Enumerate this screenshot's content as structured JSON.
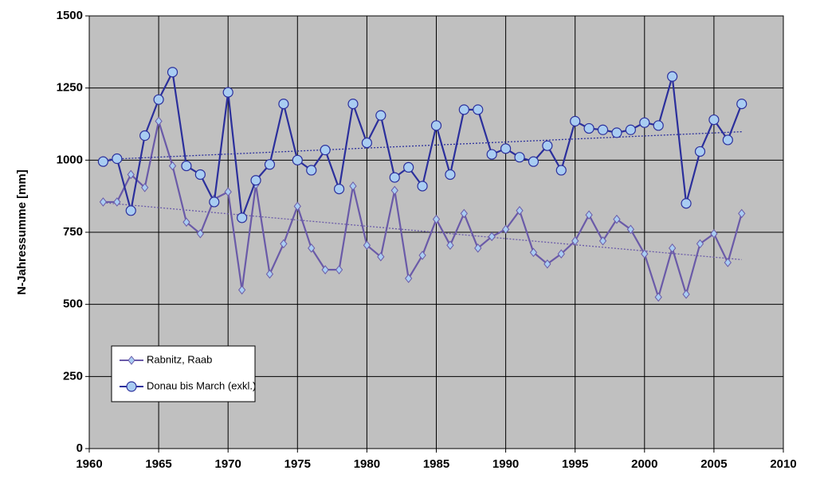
{
  "chart_data": {
    "type": "line",
    "y_label": "N-Jahressumme [mm]",
    "x": [
      1961,
      1962,
      1963,
      1964,
      1965,
      1966,
      1967,
      1968,
      1969,
      1970,
      1971,
      1972,
      1973,
      1974,
      1975,
      1976,
      1977,
      1978,
      1979,
      1980,
      1981,
      1982,
      1983,
      1984,
      1985,
      1986,
      1987,
      1988,
      1989,
      1990,
      1991,
      1992,
      1993,
      1994,
      1995,
      1996,
      1997,
      1998,
      1999,
      2000,
      2001,
      2002,
      2003,
      2004,
      2005,
      2006,
      2007
    ],
    "series": [
      {
        "name": "Rabnitz, Raab",
        "color": "#6a5aa8",
        "marker": "diamond",
        "values": [
          855,
          855,
          950,
          905,
          1135,
          980,
          785,
          745,
          865,
          890,
          550,
          915,
          605,
          710,
          840,
          695,
          620,
          620,
          910,
          705,
          665,
          895,
          590,
          670,
          795,
          705,
          815,
          695,
          735,
          760,
          825,
          680,
          640,
          675,
          720,
          810,
          720,
          795,
          760,
          675,
          525,
          695,
          535,
          710,
          745,
          645,
          815
        ]
      },
      {
        "name": "Donau bis March (exkl.)",
        "color": "#2b2f9c",
        "marker": "circle",
        "values": [
          995,
          1005,
          825,
          1085,
          1210,
          1305,
          980,
          950,
          855,
          1235,
          800,
          930,
          985,
          1195,
          1000,
          965,
          1035,
          900,
          1195,
          1060,
          1155,
          940,
          975,
          910,
          1120,
          950,
          1175,
          1175,
          1020,
          1040,
          1010,
          995,
          1050,
          965,
          1135,
          1110,
          1105,
          1095,
          1105,
          1130,
          1120,
          1290,
          850,
          1030,
          1140,
          1070,
          1195
        ]
      }
    ],
    "xlim": [
      1960,
      2010
    ],
    "xticks": [
      1960,
      1965,
      1970,
      1975,
      1980,
      1985,
      1990,
      1995,
      2000,
      2005,
      2010
    ],
    "ylim": [
      0,
      1500
    ],
    "yticks": [
      0,
      250,
      500,
      750,
      1000,
      1250,
      1500
    ],
    "grid": true,
    "trendline": true,
    "legend": "lower left"
  }
}
